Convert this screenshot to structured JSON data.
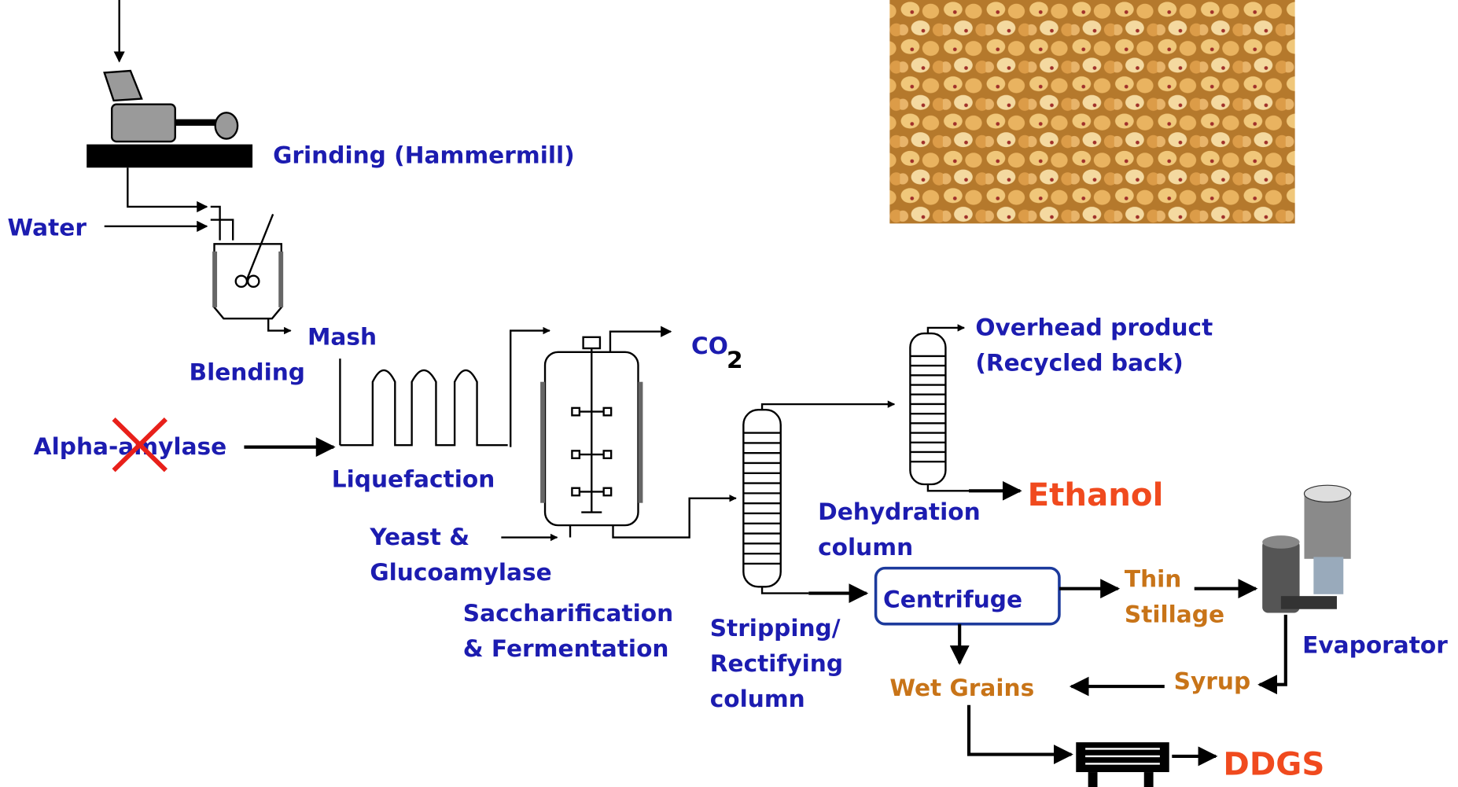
{
  "labels": {
    "grinding": "Grinding (Hammermill)",
    "water": "Water",
    "blending": "Blending",
    "mash": "Mash",
    "alpha_amylase": "Alpha-amylase",
    "liquefaction": "Liquefaction",
    "co2": {
      "base": "CO",
      "sub": "2"
    },
    "yeast": [
      "Yeast &",
      "Glucoamylase"
    ],
    "fermentation": [
      "Saccharification",
      "& Fermentation"
    ],
    "overhead": [
      "Overhead product",
      "(Recycled back)"
    ],
    "ethanol": "Ethanol",
    "dehydration": [
      "Dehydration",
      "column"
    ],
    "stripping": [
      "Stripping/",
      "Rectifying",
      "column"
    ],
    "centrifuge": "Centrifuge",
    "thin_stillage": [
      "Thin",
      "Stillage"
    ],
    "evaporator": "Evaporator",
    "wet_grains": "Wet Grains",
    "syrup": "Syrup",
    "ddgs": "DDGS"
  }
}
